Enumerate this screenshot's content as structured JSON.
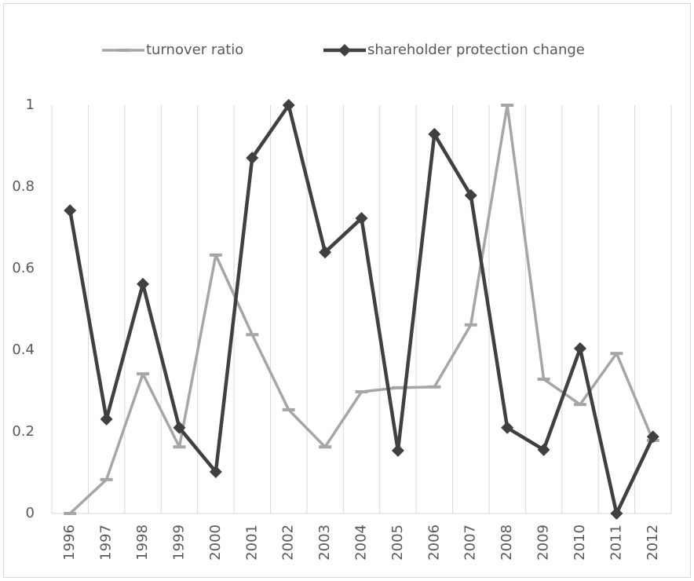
{
  "chart_data": {
    "type": "line",
    "categories": [
      "1996",
      "1997",
      "1998",
      "1999",
      "2000",
      "2001",
      "2002",
      "2003",
      "2004",
      "2005",
      "2006",
      "2007",
      "2008",
      "2009",
      "2010",
      "2011",
      "2012"
    ],
    "series": [
      {
        "name": "turnover ratio",
        "color": "#a6a6a6",
        "marker": "dash",
        "values": [
          0,
          0.083,
          0.342,
          0.163,
          0.633,
          0.438,
          0.254,
          0.163,
          0.298,
          0.308,
          0.31,
          0.462,
          1.0,
          0.329,
          0.267,
          0.392,
          0.179
        ]
      },
      {
        "name": "shareholder protection change",
        "color": "#404040",
        "marker": "diamond",
        "values": [
          0.742,
          0.231,
          0.562,
          0.21,
          0.102,
          0.871,
          1.0,
          0.64,
          0.723,
          0.154,
          0.929,
          0.779,
          0.21,
          0.156,
          0.404,
          0,
          0.188
        ]
      }
    ],
    "ylim": [
      0,
      1
    ],
    "yticks": [
      0,
      0.2,
      0.4,
      0.6,
      0.8,
      1
    ],
    "grid": "x",
    "legend": "top"
  }
}
